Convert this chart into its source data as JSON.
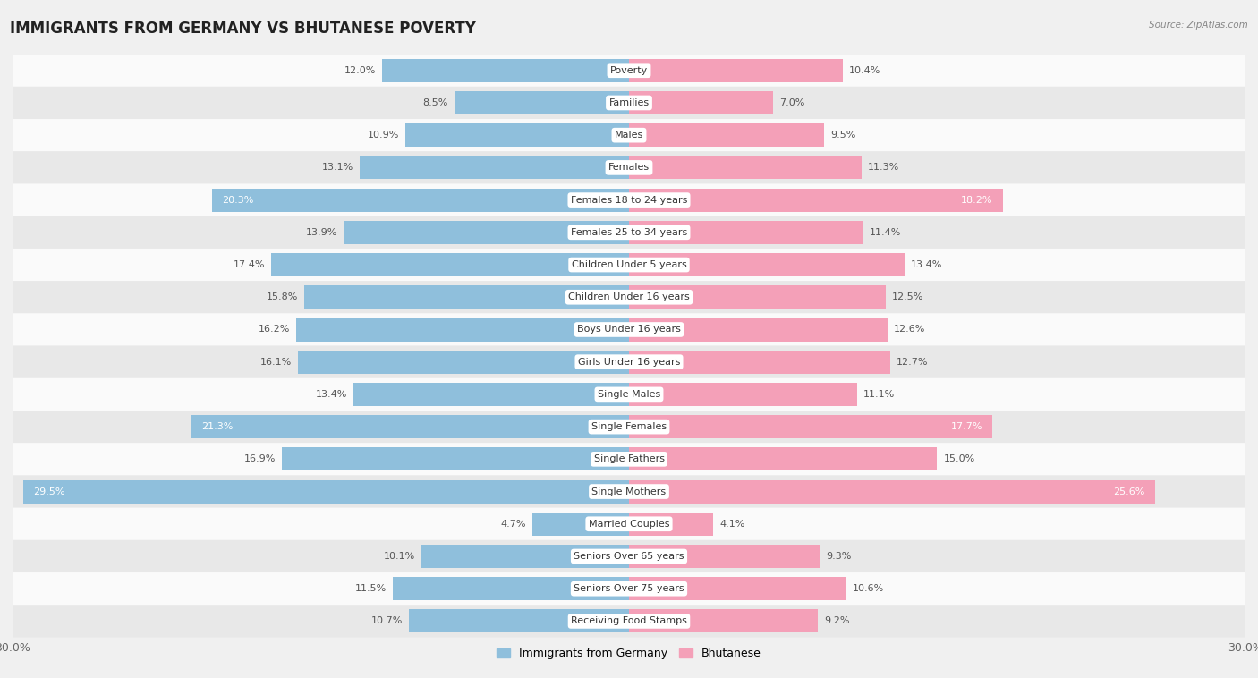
{
  "title": "IMMIGRANTS FROM GERMANY VS BHUTANESE POVERTY",
  "source": "Source: ZipAtlas.com",
  "categories": [
    "Poverty",
    "Families",
    "Males",
    "Females",
    "Females 18 to 24 years",
    "Females 25 to 34 years",
    "Children Under 5 years",
    "Children Under 16 years",
    "Boys Under 16 years",
    "Girls Under 16 years",
    "Single Males",
    "Single Females",
    "Single Fathers",
    "Single Mothers",
    "Married Couples",
    "Seniors Over 65 years",
    "Seniors Over 75 years",
    "Receiving Food Stamps"
  ],
  "germany_values": [
    12.0,
    8.5,
    10.9,
    13.1,
    20.3,
    13.9,
    17.4,
    15.8,
    16.2,
    16.1,
    13.4,
    21.3,
    16.9,
    29.5,
    4.7,
    10.1,
    11.5,
    10.7
  ],
  "bhutan_values": [
    10.4,
    7.0,
    9.5,
    11.3,
    18.2,
    11.4,
    13.4,
    12.5,
    12.6,
    12.7,
    11.1,
    17.7,
    15.0,
    25.6,
    4.1,
    9.3,
    10.6,
    9.2
  ],
  "germany_color": "#8fbfdc",
  "bhutan_color": "#f4a0b8",
  "germany_label": "Immigrants from Germany",
  "bhutan_label": "Bhutanese",
  "bar_height": 0.72,
  "background_color": "#f0f0f0",
  "row_colors": [
    "#fafafa",
    "#e8e8e8"
  ],
  "title_fontsize": 12,
  "label_fontsize": 8,
  "value_fontsize": 8,
  "white_text_threshold": 17.5,
  "axis_max": 30.0
}
